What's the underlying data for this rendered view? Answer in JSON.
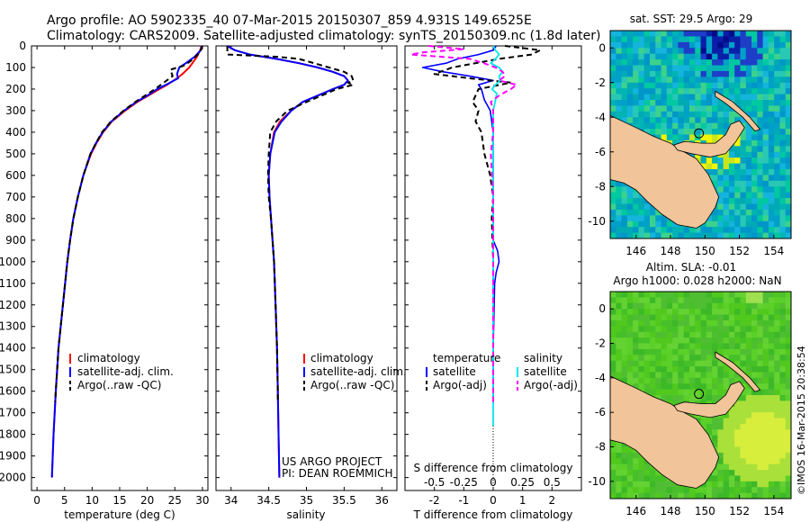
{
  "header": {
    "line1": "Argo profile: AO 5902335_40 07-Mar-2015 20150307_859 4.931S 149.6525E",
    "line2": "Climatology: CARS2009. Satellite-adjusted climatology: synTS_20150309.nc (1.8d later)"
  },
  "colors": {
    "climatology": "#ff0000",
    "satellite": "#0000ff",
    "argo": "#000000",
    "sal_satellite": "#00e5ee",
    "sal_argo": "#ff00ff",
    "land": "#f2c49a"
  },
  "chart_data": [
    {
      "type": "line",
      "name": "temperature-panel",
      "xlabel": "temperature (deg C)",
      "ylabel": "",
      "xlim": [
        -1,
        31
      ],
      "ylim": [
        2060,
        0
      ],
      "xticks": [
        "0",
        "5",
        "10",
        "15",
        "20",
        "25",
        "30"
      ],
      "yticks": [
        "0",
        "100",
        "200",
        "300",
        "400",
        "500",
        "600",
        "700",
        "800",
        "900",
        "1000",
        "1100",
        "1200",
        "1300",
        "1400",
        "1500",
        "1600",
        "1700",
        "1800",
        "1900",
        "2000"
      ],
      "legend": [
        "climatology",
        "satellite-adj. clim.",
        "Argo(..raw -QC)"
      ],
      "series": [
        {
          "name": "climatology",
          "style": "solid",
          "depth": [
            0,
            20,
            50,
            80,
            100,
            130,
            150,
            180,
            200,
            230,
            260,
            300,
            350,
            400,
            450,
            500,
            600,
            700,
            800,
            900,
            1000,
            1200,
            1400,
            1600,
            1800,
            2000
          ],
          "values": [
            29.8,
            29.6,
            29.0,
            28.2,
            27.6,
            26.4,
            25.4,
            23.6,
            22.2,
            20.2,
            18.2,
            16.0,
            13.6,
            12.0,
            10.8,
            9.8,
            8.4,
            7.4,
            6.6,
            6.0,
            5.5,
            4.7,
            3.9,
            3.4,
            3.0,
            2.7
          ]
        },
        {
          "name": "satellite-adj. clim.",
          "style": "solid",
          "depth": [
            0,
            20,
            50,
            80,
            100,
            130,
            150,
            180,
            200,
            230,
            260,
            300,
            350,
            400,
            450,
            500,
            600,
            700,
            800,
            900,
            1000,
            1200,
            1400,
            1600,
            1800,
            2000
          ],
          "values": [
            29.9,
            29.7,
            28.6,
            27.0,
            25.8,
            25.4,
            25.6,
            23.4,
            21.8,
            20.0,
            18.0,
            15.8,
            13.5,
            11.9,
            10.7,
            9.7,
            8.4,
            7.4,
            6.6,
            6.0,
            5.5,
            4.7,
            3.9,
            3.4,
            3.0,
            2.7
          ]
        },
        {
          "name": "Argo(..raw -QC)",
          "style": "dashed",
          "depth": [
            0,
            10,
            30,
            60,
            90,
            110,
            140,
            170,
            200,
            230,
            260,
            300,
            350,
            400,
            450,
            500,
            600,
            700,
            800,
            900,
            1000,
            1200,
            1400,
            1600,
            1650
          ],
          "values": [
            30.0,
            29.9,
            29.5,
            28.4,
            26.8,
            24.2,
            24.6,
            23.0,
            21.4,
            19.6,
            17.8,
            15.7,
            13.4,
            11.8,
            10.7,
            9.7,
            8.4,
            7.4,
            6.6,
            6.0,
            5.5,
            4.7,
            3.9,
            3.4,
            3.3
          ]
        }
      ]
    },
    {
      "type": "line",
      "name": "salinity-panel",
      "xlabel": "salinity",
      "xlim": [
        33.8,
        36.2
      ],
      "ylim": [
        2060,
        0
      ],
      "xticks": [
        "34",
        "34.5",
        "35",
        "35.5",
        "36"
      ],
      "legend": [
        "climatology",
        "satellite-adj. clim.",
        "Argo(..raw -QC)"
      ],
      "credits": [
        "US ARGO PROJECT",
        "PI: DEAN ROEMMICH"
      ],
      "series": [
        {
          "name": "climatology",
          "style": "solid",
          "depth": [
            0,
            20,
            40,
            60,
            80,
            100,
            120,
            140,
            160,
            180,
            200,
            230,
            260,
            300,
            350,
            400,
            500,
            600,
            700,
            800,
            900,
            1000,
            1200,
            1400,
            1600,
            1800,
            2000
          ],
          "values": [
            33.95,
            34.05,
            34.25,
            34.6,
            34.9,
            35.15,
            35.35,
            35.5,
            35.55,
            35.5,
            35.35,
            35.15,
            34.95,
            34.8,
            34.65,
            34.57,
            34.52,
            34.5,
            34.51,
            34.53,
            34.55,
            34.57,
            34.59,
            34.61,
            34.62,
            34.63,
            34.64
          ]
        },
        {
          "name": "satellite-adj. clim.",
          "style": "solid",
          "depth": [
            0,
            20,
            40,
            60,
            80,
            100,
            120,
            140,
            160,
            180,
            200,
            230,
            260,
            300,
            350,
            400,
            500,
            600,
            700,
            800,
            900,
            1000,
            1200,
            1400,
            1600,
            1800,
            2000
          ],
          "values": [
            33.95,
            34.05,
            34.25,
            34.6,
            34.9,
            35.15,
            35.35,
            35.5,
            35.55,
            35.5,
            35.35,
            35.15,
            34.95,
            34.8,
            34.67,
            34.58,
            34.52,
            34.5,
            34.51,
            34.53,
            34.55,
            34.57,
            34.59,
            34.61,
            34.62,
            34.63,
            34.64
          ]
        },
        {
          "name": "Argo(..raw -QC)",
          "style": "dashed",
          "depth": [
            0,
            20,
            40,
            50,
            60,
            80,
            100,
            120,
            140,
            160,
            170,
            180,
            200,
            230,
            260,
            300,
            350,
            400,
            500,
            600,
            700,
            800,
            900,
            1000,
            1200,
            1400,
            1600,
            1650
          ],
          "values": [
            33.95,
            33.95,
            33.95,
            34.6,
            34.9,
            35.1,
            35.3,
            35.5,
            35.6,
            35.62,
            35.55,
            35.62,
            35.4,
            35.2,
            35.0,
            34.75,
            34.6,
            34.52,
            34.5,
            34.49,
            34.5,
            34.53,
            34.55,
            34.57,
            34.59,
            34.61,
            34.62,
            34.62
          ]
        }
      ]
    },
    {
      "type": "line",
      "name": "difference-panel",
      "xlabel": "T difference from climatology",
      "xlabel_top": "S difference from climatology",
      "xlim": [
        -3,
        3
      ],
      "ylim": [
        2060,
        0
      ],
      "xticks": [
        "-2",
        "-1",
        "0",
        "1",
        "2"
      ],
      "xticks_S": [
        "-0.5",
        "-0.25",
        "0",
        "0.25",
        "0.5"
      ],
      "legend_temperature": [
        "temperature",
        "satellite",
        "Argo(-adj)"
      ],
      "legend_salinity": [
        "salinity",
        "satellite",
        "Argo(-adj)"
      ],
      "series": [
        {
          "name": "T satellite",
          "style": "solid",
          "depth": [
            0,
            20,
            40,
            60,
            80,
            100,
            120,
            140,
            160,
            180,
            200,
            250,
            300,
            400,
            500,
            700,
            900,
            950,
            1000,
            1050,
            1100,
            1400,
            1600,
            1650
          ],
          "values": [
            0.1,
            0.0,
            -0.5,
            -1.2,
            -1.6,
            -2.4,
            -1.7,
            -0.8,
            0.0,
            -0.5,
            -0.4,
            -0.3,
            -0.1,
            0.0,
            0.0,
            0.0,
            0.0,
            0.15,
            0.2,
            0.1,
            0.05,
            0.0,
            0.0,
            0.0
          ]
        },
        {
          "name": "T Argo(-adj)",
          "style": "dashed",
          "depth": [
            0,
            20,
            40,
            60,
            80,
            100,
            130,
            150,
            170,
            200,
            230,
            260,
            300,
            350,
            400,
            500,
            600,
            700,
            800,
            1000,
            1200,
            1400,
            1600,
            1650
          ],
          "values": [
            0.4,
            1.6,
            1.3,
            0.2,
            -0.6,
            -1.4,
            -2.0,
            -0.8,
            0.6,
            -0.5,
            -0.6,
            -0.7,
            -0.5,
            -0.6,
            -0.4,
            -0.3,
            -0.1,
            0.0,
            -0.05,
            0.0,
            0.0,
            0.0,
            0.0,
            0.0
          ]
        },
        {
          "name": "S satellite",
          "style": "solid",
          "depth": [
            0,
            20,
            40,
            60,
            80,
            100,
            120,
            140,
            160,
            180,
            200,
            220,
            250,
            300,
            400,
            600,
            800,
            1000,
            1200,
            1400,
            1600,
            1700,
            1760
          ],
          "values": [
            0.0,
            0.02,
            0.05,
            0.02,
            -0.02,
            0.05,
            0.08,
            0.05,
            0.06,
            0.02,
            -0.01,
            0.03,
            0.02,
            0.0,
            0.0,
            0.0,
            0.0,
            0.0,
            0.0,
            0.0,
            0.0,
            0.0,
            0.0
          ]
        },
        {
          "name": "S Argo(-adj)",
          "style": "dashed",
          "depth": [
            0,
            15,
            30,
            40,
            50,
            60,
            80,
            100,
            120,
            140,
            160,
            180,
            200,
            230,
            260,
            300,
            400,
            500,
            700,
            900,
            1100,
            1300,
            1500,
            1650
          ],
          "values": [
            -0.55,
            -0.25,
            -0.6,
            -0.7,
            -0.45,
            -0.2,
            -0.08,
            0.02,
            0.08,
            0.1,
            0.05,
            0.2,
            0.15,
            0.05,
            -0.02,
            0.0,
            0.0,
            -0.02,
            0.0,
            0.0,
            0.0,
            0.0,
            0.0,
            0.0
          ]
        }
      ]
    },
    {
      "type": "heatmap",
      "name": "sst-map",
      "title": "sat. SST: 29.5 Argo: 29",
      "xlim": [
        144.5,
        155
      ],
      "ylim": [
        -11,
        1
      ],
      "xticks": [
        "146",
        "148",
        "150",
        "152",
        "154"
      ],
      "yticks": [
        "0",
        "-2",
        "-4",
        "-6",
        "-8",
        "-10"
      ]
    },
    {
      "type": "heatmap",
      "name": "sla-map",
      "title_line1": "Altim. SLA: -0.01",
      "title_line2": "Argo h1000: 0.028 h2000: NaN",
      "xlim": [
        144.5,
        155
      ],
      "ylim": [
        -11,
        1
      ],
      "xticks": [
        "146",
        "148",
        "150",
        "152",
        "154"
      ],
      "yticks": [
        "0",
        "-2",
        "-4",
        "-6",
        "-8",
        "-10"
      ]
    }
  ],
  "footer": {
    "stamp": "©IMOS 16-Mar-2015 20:38:54"
  }
}
